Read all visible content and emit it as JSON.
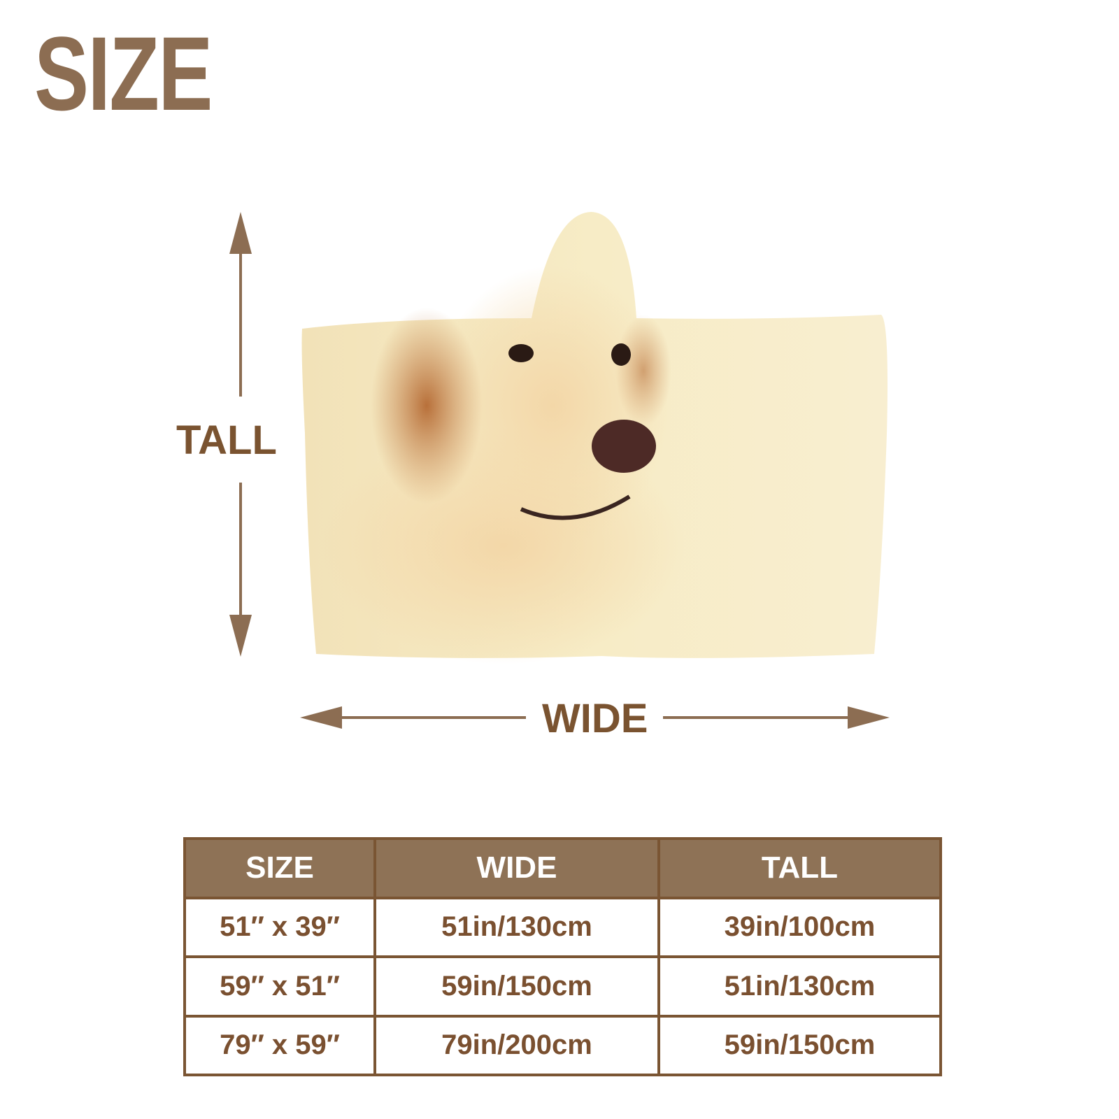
{
  "title": "SIZE",
  "diagram": {
    "tall_label": "TALL",
    "wide_label": "WIDE",
    "image": "hooded-blanket-golden-retriever-print"
  },
  "colors": {
    "brand": "#8c6d52",
    "text": "#7a5030",
    "header_bg": "#8e7256",
    "border": "#7a5533"
  },
  "table": {
    "headers": [
      "SIZE",
      "WIDE",
      "TALL"
    ],
    "rows": [
      [
        "51″ x 39″",
        "51in/130cm",
        "39in/100cm"
      ],
      [
        "59″ x 51″",
        "59in/150cm",
        "51in/130cm"
      ],
      [
        "79″ x 59″",
        "79in/200cm",
        "59in/150cm"
      ]
    ]
  }
}
